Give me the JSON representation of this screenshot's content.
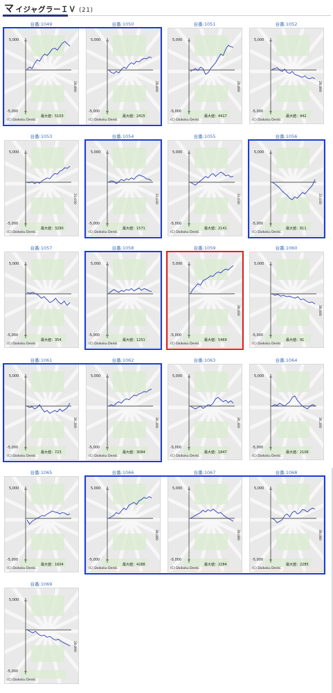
{
  "header": {
    "icon_glyph": "マ",
    "title_rest": "イジャグラーＩＶ",
    "count": "(21)"
  },
  "copyright": "(C) Daikoku Denki.",
  "y_top_label": "5,000",
  "y_bottom_label": "-5,000",
  "colors": {
    "group_border": "#1d3bd6",
    "highlight_border": "#e02020",
    "line": "#2a3db8",
    "label": "#3a6fb8"
  },
  "machines": [
    {
      "label": "台番:1049",
      "max_text": "最大値：5103",
      "x_max_text": "28,890",
      "group": "blue",
      "values": [
        0.02,
        0.1,
        0.05,
        0.22,
        0.35,
        0.3,
        0.45,
        0.55,
        0.5,
        0.6,
        0.72,
        0.75,
        0.68,
        0.8,
        0.92,
        0.98,
        0.9,
        0.82
      ]
    },
    {
      "label": "台番:1050",
      "max_text": "最大値：2415",
      "x_max_text": "28,890",
      "group": "blue",
      "values": [
        0.0,
        -0.08,
        -0.12,
        -0.05,
        -0.1,
        0.02,
        0.1,
        0.05,
        0.18,
        0.25,
        0.2,
        0.3,
        0.28,
        0.35,
        0.4,
        0.38,
        0.45,
        0.42
      ]
    },
    {
      "label": "台番:1051",
      "max_text": "最大値：4417",
      "x_max_text": "28,890",
      "group": "none",
      "values": [
        -0.05,
        0.0,
        0.05,
        -0.02,
        0.1,
        0.05,
        -0.15,
        -0.1,
        0.05,
        0.15,
        0.25,
        0.4,
        0.55,
        0.5,
        0.72,
        0.85,
        0.8,
        0.78
      ]
    },
    {
      "label": "台番:1052",
      "max_text": "最大値：442",
      "x_max_text": "28,890",
      "group": "none",
      "values": [
        0.02,
        0.05,
        0.08,
        0.0,
        -0.05,
        0.03,
        -0.08,
        -0.12,
        -0.05,
        -0.15,
        -0.18,
        -0.22,
        -0.25,
        -0.2,
        -0.28,
        -0.3,
        -0.26,
        -0.3
      ]
    },
    {
      "label": "台番:1053",
      "max_text": "最大値：3290",
      "x_max_text": "33,030",
      "group": "none",
      "values": [
        0.0,
        -0.02,
        0.02,
        -0.05,
        0.0,
        -0.03,
        0.05,
        0.1,
        0.15,
        0.12,
        0.22,
        0.3,
        0.28,
        0.38,
        0.42,
        0.5,
        0.48,
        0.55
      ]
    },
    {
      "label": "台番:1054",
      "max_text": "最大値：1571",
      "x_max_text": "33,030",
      "group": "blue",
      "values": [
        0.0,
        0.05,
        0.03,
        -0.05,
        0.02,
        0.1,
        0.05,
        0.12,
        0.08,
        0.15,
        0.1,
        0.2,
        0.25,
        0.22,
        0.18,
        0.12,
        0.1,
        0.05
      ]
    },
    {
      "label": "台番:1055",
      "max_text": "最大値：2141",
      "x_max_text": "33,030",
      "group": "none",
      "values": [
        0.0,
        -0.05,
        -0.1,
        -0.02,
        0.05,
        0.12,
        0.2,
        0.15,
        0.25,
        0.3,
        0.2,
        0.28,
        0.35,
        0.3,
        0.22,
        0.25,
        0.18,
        0.2
      ]
    },
    {
      "label": "台番:1056",
      "max_text": "最大値：811",
      "x_max_text": "33,030",
      "group": "blue",
      "values": [
        0.0,
        -0.05,
        -0.12,
        -0.2,
        -0.3,
        -0.38,
        -0.45,
        -0.55,
        -0.6,
        -0.5,
        -0.55,
        -0.45,
        -0.35,
        -0.4,
        -0.3,
        -0.2,
        -0.1,
        0.1
      ]
    },
    {
      "label": "台番:1057",
      "max_text": "最大値：354",
      "x_max_text": "",
      "group": "none",
      "values": [
        0.05,
        0.02,
        0.05,
        0.0,
        -0.05,
        -0.15,
        -0.1,
        -0.2,
        -0.3,
        -0.25,
        -0.15,
        -0.28,
        -0.35,
        -0.25,
        -0.4,
        -0.3
      ]
    },
    {
      "label": "台番:1058",
      "max_text": "最大値：1251",
      "x_max_text": "",
      "group": "blue",
      "values": [
        0.02,
        0.08,
        0.15,
        0.1,
        0.05,
        0.12,
        0.08,
        0.15,
        0.12,
        0.18,
        0.1,
        0.15,
        0.2,
        0.12,
        0.18,
        0.15,
        0.1,
        0.08
      ]
    },
    {
      "label": "台番:1059",
      "max_text": "最大値：5469",
      "x_max_text": "38,000",
      "group": "red",
      "values": [
        0.0,
        0.15,
        0.25,
        0.35,
        0.3,
        0.45,
        0.5,
        0.55,
        0.62,
        0.6,
        0.7,
        0.75,
        0.72,
        0.8,
        0.85,
        0.82,
        0.9,
        0.97
      ]
    },
    {
      "label": "台番:1060",
      "max_text": "最大値：91",
      "x_max_text": "38,000",
      "group": "none",
      "values": [
        0.0,
        -0.05,
        -0.02,
        -0.08,
        -0.05,
        -0.1,
        -0.08,
        -0.12,
        -0.15,
        -0.1,
        -0.2,
        -0.18,
        -0.25,
        -0.3,
        -0.28,
        -0.35
      ]
    },
    {
      "label": "台番:1061",
      "max_text": "最大値：723",
      "x_max_text": "36,300",
      "group": "blue",
      "values": [
        0.0,
        -0.05,
        -0.02,
        -0.1,
        -0.05,
        0.05,
        -0.1,
        -0.2,
        -0.15,
        -0.25,
        -0.2,
        -0.15,
        -0.2,
        -0.1,
        -0.18,
        -0.12,
        -0.05,
        0.1
      ]
    },
    {
      "label": "台番:1062",
      "max_text": "最大値：3084",
      "x_max_text": "36,300",
      "group": "blue",
      "values": [
        0.0,
        0.05,
        0.0,
        0.1,
        0.15,
        0.1,
        0.2,
        0.25,
        0.22,
        0.3,
        0.38,
        0.35,
        0.42,
        0.45,
        0.5,
        0.48,
        0.55,
        0.58
      ]
    },
    {
      "label": "台番:1063",
      "max_text": "最大値：1847",
      "x_max_text": "36,300",
      "group": "none",
      "values": [
        0.0,
        -0.05,
        -0.1,
        -0.05,
        0.0,
        -0.08,
        -0.02,
        0.05,
        0.02,
        0.1,
        0.25,
        0.3,
        0.22,
        0.15,
        0.2,
        0.12,
        0.18,
        0.1
      ]
    },
    {
      "label": "台番:1064",
      "max_text": "最大値：2106",
      "x_max_text": "36,300",
      "group": "none",
      "values": [
        0.0,
        0.05,
        0.02,
        0.1,
        0.05,
        0.0,
        0.08,
        0.15,
        0.3,
        0.35,
        0.2,
        0.1,
        0.0,
        -0.05,
        -0.1,
        0.0,
        0.05,
        0.02
      ]
    },
    {
      "label": "台番:1065",
      "max_text": "最大値：1604",
      "x_max_text": "",
      "group": "none",
      "values": [
        -0.05,
        -0.2,
        -0.1,
        -0.05,
        0.0,
        0.05,
        0.1,
        0.08,
        0.15,
        0.2,
        0.25,
        0.22,
        0.2,
        0.15,
        0.2,
        0.18,
        0.12,
        0.15
      ]
    },
    {
      "label": "台番:1066",
      "max_text": "最大値：4288",
      "x_max_text": "38,080",
      "group": "blue",
      "values": [
        0.0,
        0.05,
        0.1,
        0.2,
        0.15,
        0.25,
        0.35,
        0.3,
        0.45,
        0.5,
        0.55,
        0.48,
        0.6,
        0.65,
        0.72,
        0.68,
        0.75,
        0.7
      ]
    },
    {
      "label": "台番:1067",
      "max_text": "最大値：2284",
      "x_max_text": "38,080",
      "group": "blue",
      "values": [
        0.0,
        0.05,
        0.1,
        0.15,
        0.2,
        0.28,
        0.22,
        0.3,
        0.25,
        0.32,
        0.25,
        0.18,
        0.2,
        0.12,
        0.05,
        0.0,
        -0.05,
        -0.1
      ]
    },
    {
      "label": "台番:1068",
      "max_text": "最大値：2285",
      "x_max_text": "38,080",
      "group": "blue",
      "values": [
        0.0,
        -0.05,
        -0.15,
        -0.1,
        -0.05,
        0.1,
        0.15,
        0.05,
        0.2,
        0.25,
        0.15,
        0.2,
        0.3,
        0.28,
        0.22,
        0.3,
        0.35,
        0.32
      ]
    },
    {
      "label": "台番:1069",
      "max_text": "",
      "x_max_text": "28,890",
      "group": "none",
      "values": [
        0.02,
        -0.05,
        -0.1,
        -0.05,
        -0.15,
        -0.2,
        -0.18,
        -0.25,
        -0.22,
        -0.3,
        -0.35,
        -0.32,
        -0.4,
        -0.45,
        -0.5,
        -0.55
      ]
    }
  ]
}
